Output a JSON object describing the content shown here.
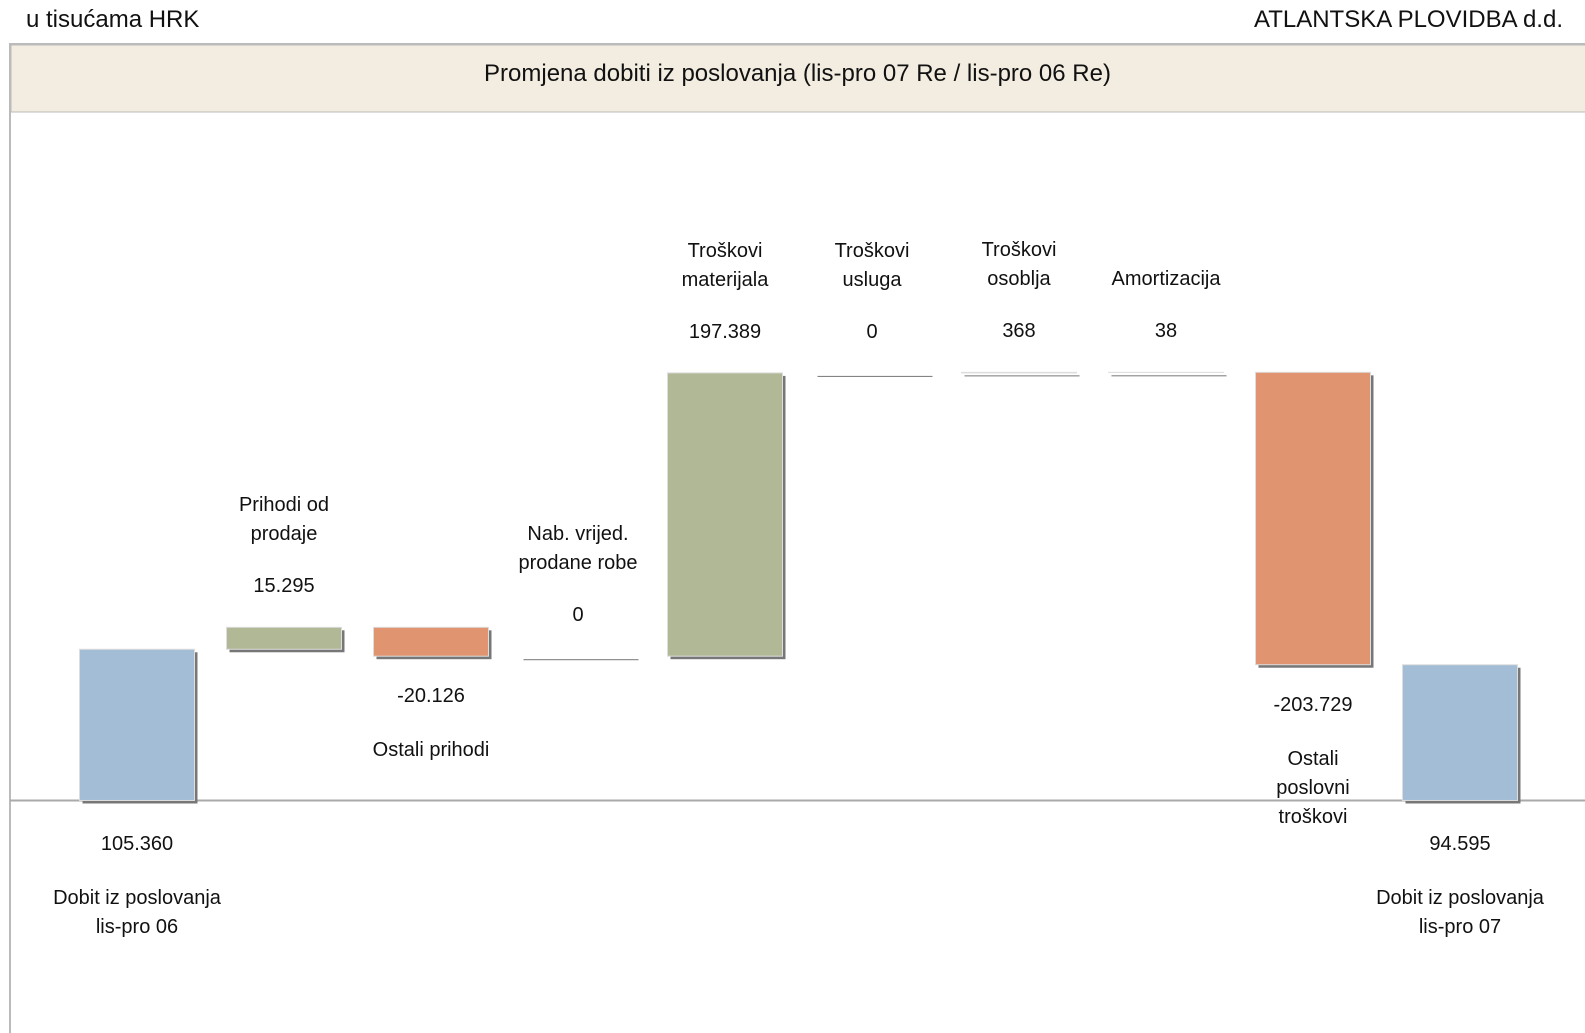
{
  "header": {
    "unit_note": "u tisućama HRK",
    "company": "ATLANTSKA PLOVIDBA d.d."
  },
  "chart_data": {
    "type": "waterfall",
    "title": "Promjena dobiti  iz poslovanja (lis-pro 07 Re / lis-pro 06 Re)",
    "categories": [
      "Dobit iz poslovanja\nlis-pro 06",
      "Prihodi od\nprodaje",
      "Ostali prihodi",
      "Nab. vrijed.\nprodane robe",
      "Troškovi\nmaterijala",
      "Troškovi\nusluga",
      "Troškovi\nosoblja",
      "Amortizacija",
      "Ostali\nposlovni\ntroškovi",
      "Dobit iz poslovanja\nlis-pro 07"
    ],
    "measure": [
      "absolute",
      "relative",
      "relative",
      "relative",
      "relative",
      "relative",
      "relative",
      "relative",
      "relative",
      "total"
    ],
    "values": [
      105360,
      15295,
      -20126,
      0,
      197389,
      0,
      368,
      38,
      -203729,
      94595
    ],
    "value_labels": [
      "105.360",
      "15.295",
      "-20.126",
      "0",
      "197.389",
      "0",
      "368",
      "38",
      "-203.729",
      "94.595"
    ],
    "colors": {
      "absolute": "#a3bdd6",
      "increase": "#b0b896",
      "decrease": "#e09470",
      "total": "#a3bdd6"
    },
    "ylim": [
      -162000,
      479000
    ]
  }
}
